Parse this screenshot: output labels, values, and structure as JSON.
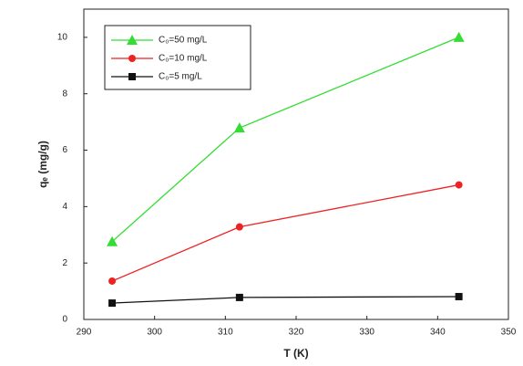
{
  "chart_data": {
    "type": "line",
    "x_label": "T (K)",
    "y_label": "qₑ (mg/g)",
    "x": [
      294,
      312,
      343
    ],
    "series": [
      {
        "name": "C₀=50 mg/L",
        "color": "#33dd33",
        "marker": "triangle",
        "values": [
          2.76,
          6.79,
          10.0
        ]
      },
      {
        "name": "C₀=10 mg/L",
        "color": "#ee2222",
        "marker": "circle",
        "values": [
          1.36,
          3.28,
          4.77
        ]
      },
      {
        "name": "C₀=5 mg/L",
        "color": "#111111",
        "marker": "square",
        "values": [
          0.58,
          0.78,
          0.81
        ]
      }
    ],
    "xlim": [
      290,
      350
    ],
    "xticks": [
      290,
      300,
      310,
      320,
      330,
      340,
      350
    ],
    "ylim": [
      0,
      11
    ],
    "yticks": [
      0,
      2,
      4,
      6,
      8,
      10
    ]
  }
}
